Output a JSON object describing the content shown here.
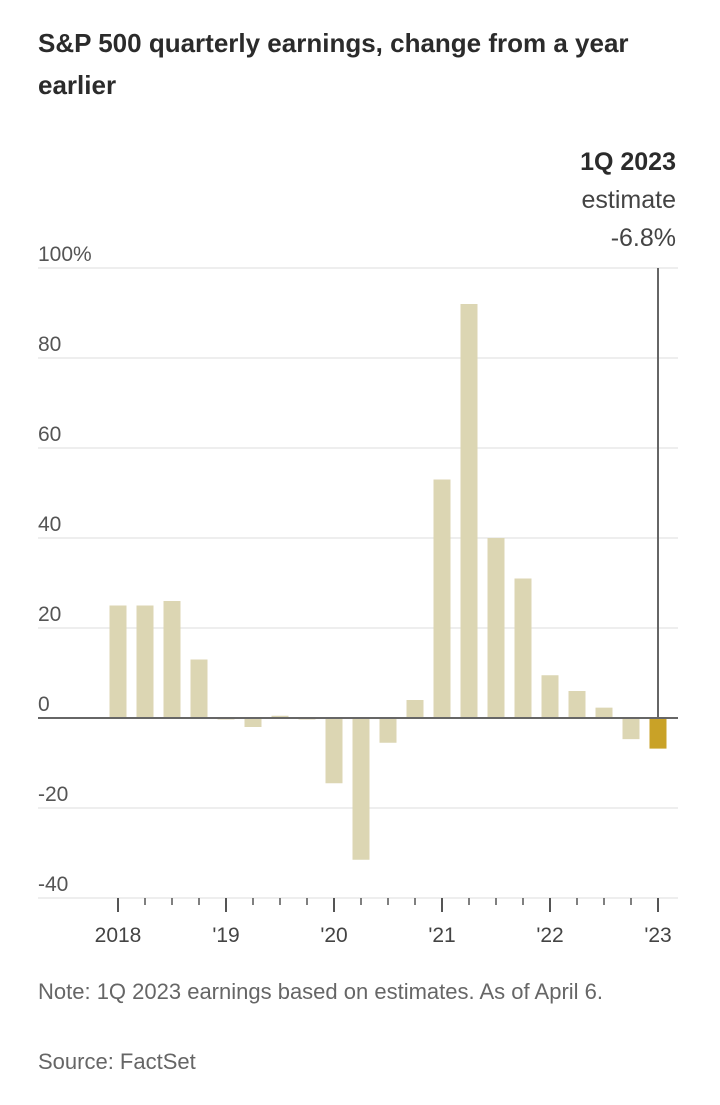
{
  "chart_data": {
    "type": "bar",
    "title": "S&P 500 quarterly earnings, change from a year earlier",
    "ylim": [
      -40,
      100
    ],
    "y_ticks": [
      100,
      80,
      60,
      40,
      20,
      0,
      -20,
      -40
    ],
    "y_tick_labels": [
      "100%",
      "80",
      "60",
      "40",
      "20",
      "0",
      "-20",
      "-40"
    ],
    "x_tick_labels": [
      "2018",
      "'19",
      "'20",
      "'21",
      "'22",
      "'23"
    ],
    "categories": [
      "1Q 2018",
      "2Q 2018",
      "3Q 2018",
      "4Q 2018",
      "1Q 2019",
      "2Q 2019",
      "3Q 2019",
      "4Q 2019",
      "1Q 2020",
      "2Q 2020",
      "3Q 2020",
      "4Q 2020",
      "1Q 2021",
      "2Q 2021",
      "3Q 2021",
      "4Q 2021",
      "1Q 2022",
      "2Q 2022",
      "3Q 2022",
      "4Q 2022",
      "1Q 2023"
    ],
    "values": [
      25,
      25,
      26,
      13,
      -0.3,
      -2,
      0.5,
      0,
      -14.5,
      -31.5,
      -5.5,
      4,
      53,
      92,
      40,
      31,
      9.5,
      6,
      2.3,
      -4.7,
      -6.8
    ],
    "colors": {
      "bar": "#dcd6b3",
      "highlight": "#c9a227",
      "gridline": "#e8e8e8",
      "zero_line": "#666666",
      "marker_line": "#666666"
    },
    "annotation": {
      "line1": "1Q 2023",
      "line2": "estimate",
      "line3": "-6.8%"
    },
    "grid": true,
    "legend": "none"
  },
  "note": "Note: 1Q 2023 earnings based on estimates. As of April 6.",
  "source": "Source: FactSet"
}
